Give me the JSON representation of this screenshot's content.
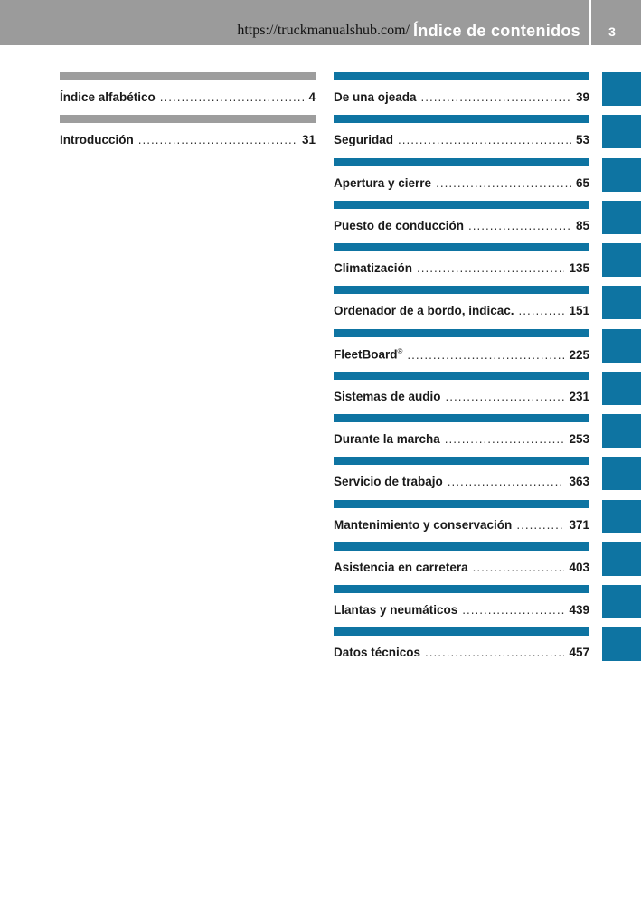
{
  "header": {
    "url": "https://truckmanualshub.com/",
    "title": "Índice de contenidos",
    "page_number": "3"
  },
  "left_entries": [
    {
      "label": "Índice alfabético",
      "page": "4"
    },
    {
      "label": "Introducción",
      "page": "31"
    }
  ],
  "right_entries": [
    {
      "label": "De una ojeada",
      "page": "39"
    },
    {
      "label": "Seguridad",
      "page": "53"
    },
    {
      "label": "Apertura y cierre",
      "page": "65"
    },
    {
      "label": "Puesto de conducción",
      "page": "85"
    },
    {
      "label": "Climatización",
      "page": "135"
    },
    {
      "label": "Ordenador de a bordo, indicac.",
      "page": "151"
    },
    {
      "label": "FleetBoard",
      "sup": "®",
      "page": "225"
    },
    {
      "label": "Sistemas de audio",
      "page": "231"
    },
    {
      "label": "Durante la marcha",
      "page": "253"
    },
    {
      "label": "Servicio de trabajo",
      "page": "363"
    },
    {
      "label": "Mantenimiento y conservación",
      "page": "371"
    },
    {
      "label": "Asistencia en carretera",
      "page": "403"
    },
    {
      "label": "Llantas y neumáticos",
      "page": "439"
    },
    {
      "label": "Datos técnicos",
      "page": "457"
    }
  ],
  "colors": {
    "header_gray": "#9b9b9b",
    "section_gray": "#9d9d9d",
    "accent_blue": "#0e74a2"
  }
}
